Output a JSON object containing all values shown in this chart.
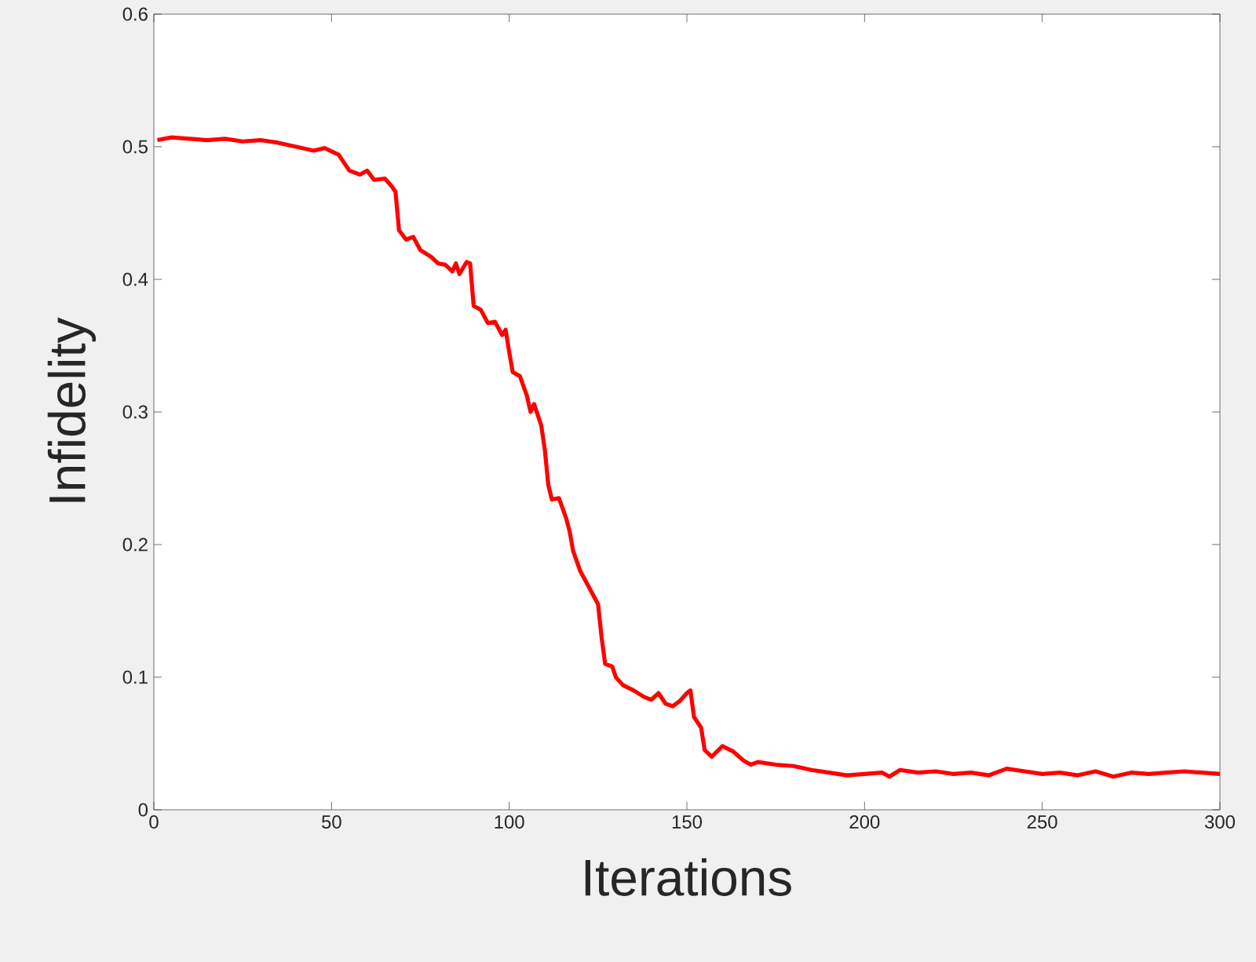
{
  "chart_data": {
    "type": "line",
    "xlabel": "Iterations",
    "ylabel": "Infidelity",
    "xlim": [
      0,
      300
    ],
    "ylim": [
      0,
      0.6
    ],
    "xticks": [
      0,
      50,
      100,
      150,
      200,
      250,
      300
    ],
    "yticks": [
      0,
      0.1,
      0.2,
      0.3,
      0.4,
      0.5,
      0.6
    ],
    "series": [
      {
        "color": "#ff0000",
        "x": [
          1,
          5,
          10,
          15,
          20,
          25,
          30,
          35,
          40,
          45,
          48,
          52,
          55,
          58,
          60,
          62,
          65,
          67,
          68,
          69,
          71,
          73,
          75,
          78,
          80,
          82,
          84,
          85,
          86,
          88,
          89,
          90,
          92,
          94,
          96,
          98,
          99,
          100,
          101,
          103,
          105,
          106,
          107,
          109,
          110,
          111,
          112,
          114,
          116,
          117,
          118,
          120,
          122,
          124,
          125,
          126,
          127,
          129,
          130,
          132,
          135,
          138,
          140,
          142,
          144,
          146,
          148,
          150,
          151,
          152,
          154,
          155,
          157,
          160,
          163,
          166,
          168,
          170,
          175,
          180,
          185,
          190,
          195,
          200,
          205,
          207,
          210,
          215,
          220,
          225,
          230,
          235,
          240,
          245,
          250,
          255,
          260,
          265,
          270,
          275,
          280,
          285,
          290,
          295,
          300
        ],
        "values": [
          0.505,
          0.507,
          0.506,
          0.505,
          0.506,
          0.504,
          0.505,
          0.503,
          0.5,
          0.497,
          0.499,
          0.494,
          0.482,
          0.479,
          0.482,
          0.475,
          0.476,
          0.47,
          0.466,
          0.437,
          0.43,
          0.432,
          0.422,
          0.417,
          0.412,
          0.411,
          0.406,
          0.412,
          0.404,
          0.413,
          0.412,
          0.38,
          0.377,
          0.367,
          0.368,
          0.358,
          0.362,
          0.345,
          0.33,
          0.327,
          0.312,
          0.3,
          0.306,
          0.29,
          0.272,
          0.245,
          0.234,
          0.235,
          0.22,
          0.21,
          0.195,
          0.18,
          0.17,
          0.16,
          0.155,
          0.13,
          0.11,
          0.108,
          0.1,
          0.094,
          0.09,
          0.085,
          0.083,
          0.088,
          0.08,
          0.078,
          0.082,
          0.088,
          0.09,
          0.07,
          0.062,
          0.045,
          0.04,
          0.048,
          0.044,
          0.037,
          0.034,
          0.036,
          0.034,
          0.033,
          0.03,
          0.028,
          0.026,
          0.027,
          0.028,
          0.025,
          0.03,
          0.028,
          0.029,
          0.027,
          0.028,
          0.026,
          0.031,
          0.029,
          0.027,
          0.028,
          0.026,
          0.029,
          0.025,
          0.028,
          0.027,
          0.028,
          0.029,
          0.028,
          0.027
        ]
      }
    ]
  }
}
